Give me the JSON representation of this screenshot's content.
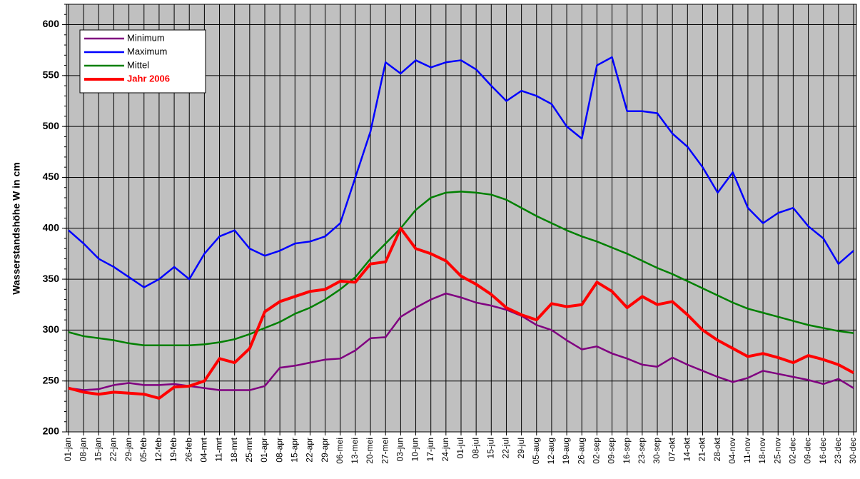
{
  "chart_data": {
    "type": "line",
    "y_label": "Wasserstandshöhe W in cm",
    "categories": [
      "01-jan",
      "08-jan",
      "15-jan",
      "22-jan",
      "29-jan",
      "05-feb",
      "12-feb",
      "19-feb",
      "26-feb",
      "04-mrt",
      "11-mrt",
      "18-mrt",
      "25-mrt",
      "01-apr",
      "08-apr",
      "15-apr",
      "22-apr",
      "29-apr",
      "06-mei",
      "13-mei",
      "20-mei",
      "27-mei",
      "03-jun",
      "10-jun",
      "17-jun",
      "24-jun",
      "01-jul",
      "08-jul",
      "15-jul",
      "22-jul",
      "29-jul",
      "05-aug",
      "12-aug",
      "19-aug",
      "26-aug",
      "02-sep",
      "09-sep",
      "16-sep",
      "23-sep",
      "30-sep",
      "07-okt",
      "14-okt",
      "21-okt",
      "28-okt",
      "04-nov",
      "11-nov",
      "18-nov",
      "25-nov",
      "02-dec",
      "09-dec",
      "16-dec",
      "23-dec",
      "30-dec"
    ],
    "series": [
      {
        "name": "Minimum",
        "color": "#800080",
        "values": [
          243,
          241,
          242,
          246,
          248,
          246,
          246,
          247,
          245,
          243,
          241,
          241,
          241,
          245,
          263,
          265,
          268,
          271,
          272,
          280,
          292,
          293,
          313,
          322,
          330,
          336,
          332,
          327,
          324,
          320,
          314,
          305,
          300,
          290,
          281,
          284,
          277,
          272,
          266,
          264,
          273,
          266,
          260,
          254,
          249,
          253,
          260,
          257,
          254,
          251,
          247,
          252,
          243
        ]
      },
      {
        "name": "Maximum",
        "color": "#0000ff",
        "values": [
          398,
          385,
          370,
          362,
          352,
          342,
          350,
          362,
          350,
          375,
          392,
          398,
          380,
          373,
          378,
          385,
          387,
          392,
          405,
          450,
          495,
          563,
          552,
          565,
          558,
          563,
          565,
          556,
          540,
          525,
          535,
          530,
          522,
          500,
          488,
          560,
          568,
          515,
          515,
          513,
          493,
          480,
          460,
          435,
          455,
          420,
          405,
          415,
          420,
          402,
          390,
          365,
          378
        ]
      },
      {
        "name": "Mittel",
        "color": "#008000",
        "values": [
          298,
          294,
          292,
          290,
          287,
          285,
          285,
          285,
          285,
          286,
          288,
          291,
          296,
          302,
          308,
          316,
          322,
          330,
          340,
          352,
          370,
          385,
          400,
          418,
          430,
          435,
          436,
          435,
          433,
          428,
          420,
          412,
          405,
          398,
          392,
          387,
          381,
          375,
          368,
          361,
          355,
          348,
          341,
          334,
          327,
          321,
          317,
          313,
          309,
          305,
          302,
          299,
          297
        ]
      },
      {
        "name": "Jahr 2006",
        "color": "#ff0000",
        "values": [
          243,
          239,
          237,
          239,
          238,
          237,
          233,
          244,
          245,
          250,
          272,
          268,
          282,
          318,
          328,
          333,
          338,
          340,
          348,
          347,
          365,
          367,
          400,
          380,
          375,
          368,
          353,
          345,
          335,
          322,
          315,
          310,
          326,
          323,
          325,
          347,
          338,
          322,
          333,
          325,
          328,
          315,
          300,
          290,
          282,
          274,
          277,
          273,
          268,
          275,
          271,
          266,
          258
        ]
      }
    ],
    "ylim": [
      200,
      620
    ],
    "yticks": [
      200,
      250,
      300,
      350,
      400,
      450,
      500,
      550,
      600
    ],
    "grid": true,
    "legend": "upper left"
  }
}
